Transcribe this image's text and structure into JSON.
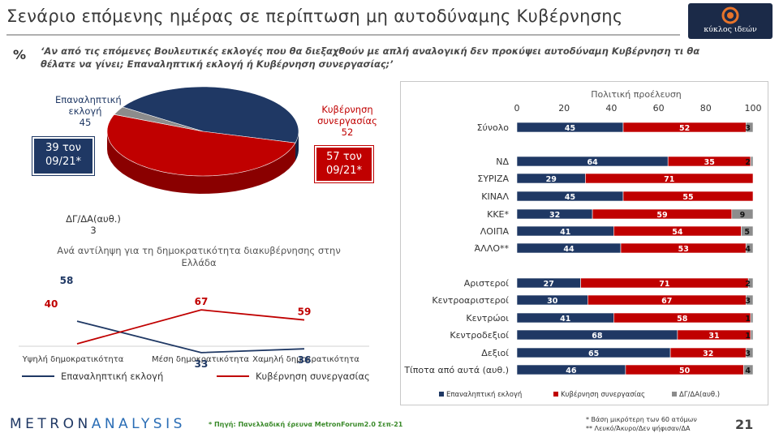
{
  "header": {
    "title": "Σενάριο επόμενης ημέρας σε περίπτωση μη αυτοδύναμης Κυβέρνησης",
    "logo_text": "κύκλος ιδεών",
    "percent_symbol": "%",
    "question": "‘Αν από τις επόμενες Βουλευτικές εκλογές που θα διεξαχθούν με απλή αναλογική δεν προκύψει αυτοδύναμη Κυβέρνηση τι θα θέλατε να γίνει; Επαναληπτική εκλογή ή Κυβέρνηση συνεργασίας;’"
  },
  "colors": {
    "navy": "#1f3864",
    "red": "#c00000",
    "gray": "#8c8c8c"
  },
  "pie_labels": {
    "repeat_name": "Επαναληπτική εκλογή",
    "repeat_value": "45",
    "coalition_name": "Κυβέρνηση συνεργασίας",
    "coalition_value": "52",
    "dk_name": "ΔΓ/ΔΑ(αυθ.)",
    "dk_value": "3",
    "prev_repeat": "39 τον 09/21*",
    "prev_coalition": "57 τον 09/21*"
  },
  "line_title": "Ανά αντίληψη για τη δημοκρατικότητα διακυβέρνησης στην Ελλάδα",
  "chart_data": [
    {
      "type": "pie",
      "labels": [
        "Επαναληπτική εκλογή",
        "Κυβέρνηση συνεργασίας",
        "ΔΓ/ΔΑ(αυθ.)"
      ],
      "values": [
        45,
        52,
        3
      ]
    },
    {
      "type": "line",
      "title": "Ανά αντίληψη για τη δημοκρατικότητα διακυβέρνησης στην Ελλάδα",
      "categories": [
        "Υψηλή δημοκρατικότητα",
        "Μέση δημοκρατικότητα",
        "Χαμηλή δημοκρατικότητα"
      ],
      "series": [
        {
          "name": "Επαναληπτική εκλογή",
          "values": [
            58,
            33,
            36
          ],
          "color": "#1f3864"
        },
        {
          "name": "Κυβέρνηση συνεργασίας",
          "values": [
            40,
            67,
            59
          ],
          "color": "#c00000"
        }
      ],
      "grid": false
    },
    {
      "type": "bar",
      "orientation": "horizontal-stacked",
      "title": "Πολιτική προέλευση",
      "xlim": [
        0,
        100
      ],
      "xticks": [
        "0",
        "20",
        "40",
        "60",
        "80",
        "100"
      ],
      "categories": [
        "Σύνολο",
        "ΝΔ",
        "ΣΥΡΙΖΑ",
        "ΚΙΝΑΛ",
        "ΚΚΕ*",
        "ΛΟΙΠΑ",
        "ΆΛΛΟ**",
        "Αριστεροί",
        "Κεντροαριστεροί",
        "Κεντρώοι",
        "Κεντροδεξιοί",
        "Δεξιοί",
        "Τίποτα από αυτά (αυθ.)"
      ],
      "series": [
        {
          "name": "Επαναληπτική εκλογή",
          "color": "#1f3864",
          "values": [
            45,
            64,
            29,
            45,
            32,
            41,
            44,
            27,
            30,
            41,
            68,
            65,
            46
          ]
        },
        {
          "name": "Κυβέρνηση συνεργασίας",
          "color": "#c00000",
          "values": [
            52,
            35,
            71,
            55,
            59,
            54,
            53,
            71,
            67,
            58,
            31,
            32,
            50
          ]
        },
        {
          "name": "ΔΓ/ΔΑ(αυθ.)",
          "color": "#8c8c8c",
          "values": [
            3,
            2,
            null,
            null,
            9,
            5,
            4,
            2,
            3,
            1,
            1,
            3,
            4
          ]
        }
      ],
      "legend": "bottom"
    }
  ],
  "footer": {
    "brand": "METRONANALYSIS",
    "brand_a": "METRON",
    "brand_b": "ANALYSIS",
    "source": "* Πηγή: Πανελλαδική έρευνα MetronForum2.0 Σεπ-21",
    "note1": "*  Βάση μικρότερη των 60 ατόμων",
    "note2": "** Λευκό/Άκυρο/Δεν ψήφισαν/ΔΑ",
    "page": "21"
  }
}
